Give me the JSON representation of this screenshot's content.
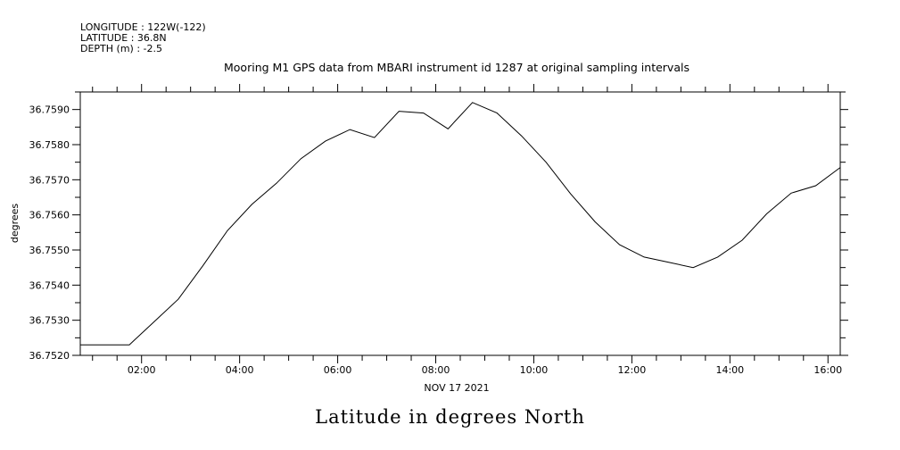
{
  "header": {
    "longitude": "LONGITUDE : 122W(-122)",
    "latitude": "LATITUDE : 36.8N",
    "depth": "DEPTH (m) : -2.5"
  },
  "caption": "Latitude in degrees North",
  "chart_data": {
    "type": "line",
    "title": "Mooring M1 GPS data from MBARI instrument id 1287 at original sampling intervals",
    "xlabel": "NOV 17 2021",
    "ylabel": "degrees",
    "x_unit": "hours of NOV 17 2021",
    "xlim": [
      0.75,
      16.25
    ],
    "ylim": [
      36.752,
      36.7595
    ],
    "x_ticks": [
      {
        "value": 2,
        "label": "02:00"
      },
      {
        "value": 4,
        "label": "04:00"
      },
      {
        "value": 6,
        "label": "06:00"
      },
      {
        "value": 8,
        "label": "08:00"
      },
      {
        "value": 10,
        "label": "10:00"
      },
      {
        "value": 12,
        "label": "12:00"
      },
      {
        "value": 14,
        "label": "14:00"
      },
      {
        "value": 16,
        "label": "16:00"
      }
    ],
    "y_ticks": [
      {
        "value": 36.752,
        "label": "36.7520"
      },
      {
        "value": 36.753,
        "label": "36.7530"
      },
      {
        "value": 36.754,
        "label": "36.7540"
      },
      {
        "value": 36.755,
        "label": "36.7550"
      },
      {
        "value": 36.756,
        "label": "36.7560"
      },
      {
        "value": 36.757,
        "label": "36.7570"
      },
      {
        "value": 36.758,
        "label": "36.7580"
      },
      {
        "value": 36.759,
        "label": "36.7590"
      }
    ],
    "grid": false,
    "x": [
      0.75,
      1.75,
      2.25,
      2.75,
      3.25,
      3.75,
      4.25,
      4.75,
      5.25,
      5.75,
      6.25,
      6.75,
      7.25,
      7.75,
      8.25,
      8.75,
      9.25,
      9.75,
      10.25,
      10.75,
      11.25,
      11.75,
      12.25,
      12.75,
      13.25,
      13.75,
      14.25,
      14.75,
      15.25,
      15.75,
      16.25
    ],
    "series": [
      {
        "values": [
          36.7523,
          36.7523,
          36.75295,
          36.7536,
          36.75455,
          36.75555,
          36.7563,
          36.7569,
          36.7576,
          36.7581,
          36.75843,
          36.7582,
          36.75895,
          36.7589,
          36.75845,
          36.7592,
          36.7589,
          36.75825,
          36.7575,
          36.7566,
          36.7558,
          36.75515,
          36.7548,
          36.75465,
          36.7545,
          36.7548,
          36.75528,
          36.75603,
          36.75662,
          36.75683,
          36.75735
        ]
      }
    ]
  }
}
